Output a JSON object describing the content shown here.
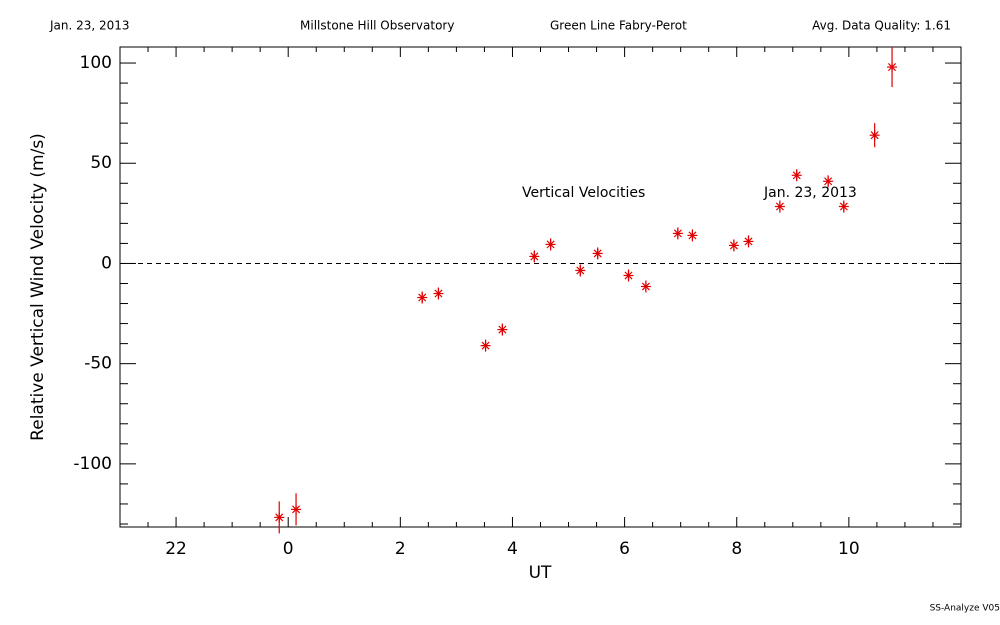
{
  "chart_data": {
    "type": "scatter",
    "header": [
      "Jan. 23, 2013",
      "Millstone Hill Observatory",
      "Green Line Fabry-Perot",
      "Avg. Data Quality: 1.61"
    ],
    "annotations": [
      "Vertical Velocities",
      "Jan. 23, 2013"
    ],
    "footer": "SS-Analyze V05",
    "xlabel": "UT",
    "ylabel": "Relative Vertical Wind Velocity (m/s)",
    "series": [
      {
        "color": "#e00000",
        "x": [
          -0.16,
          0.14,
          2.39,
          2.68,
          3.52,
          3.82,
          4.39,
          4.68,
          5.21,
          5.52,
          6.07,
          6.38,
          6.95,
          7.21,
          7.95,
          8.21,
          8.77,
          9.07,
          9.63,
          9.91,
          10.46,
          10.77
        ],
        "values": [
          -126.7,
          -122.7,
          -17,
          -15,
          -41,
          -33,
          3.5,
          9.5,
          -3.5,
          5,
          -6,
          -11.5,
          15,
          14,
          9,
          11,
          28.4,
          44,
          41,
          28.4,
          64,
          98
        ],
        "errors": [
          8,
          8,
          3,
          3,
          3,
          3,
          3,
          3,
          3,
          3,
          3,
          3,
          3,
          3,
          3,
          3,
          3,
          3,
          3,
          3,
          6,
          10
        ]
      }
    ],
    "hline": 0,
    "xlim": [
      -3,
      12
    ],
    "xticks": [
      {
        "value": -2,
        "label": "22"
      },
      0,
      2,
      4,
      6,
      8,
      10
    ],
    "xminorticks": [
      -2.5,
      -1.5,
      -1,
      -0.5,
      0.5,
      1,
      1.5,
      2.5,
      3,
      3.5,
      4.5,
      5,
      5.5,
      6.5,
      7,
      7.5,
      8.5,
      9,
      9.5,
      10.5,
      11,
      11.5
    ],
    "ylim": [
      -131.5,
      108
    ],
    "yticks": [
      -100,
      -50,
      0,
      50,
      100
    ],
    "yminorticks": [
      -130,
      -120,
      -110,
      -90,
      -80,
      -70,
      -60,
      -40,
      -30,
      -20,
      -10,
      10,
      20,
      30,
      40,
      60,
      70,
      80,
      90
    ]
  }
}
